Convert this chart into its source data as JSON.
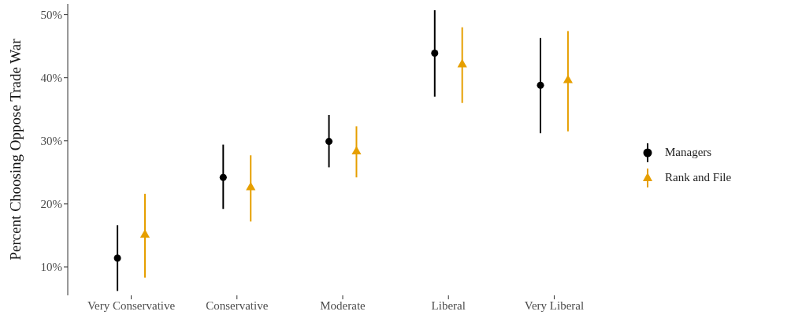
{
  "chart_data": {
    "type": "scatter",
    "ylabel": "Percent Choosing Oppose Trade War",
    "categories": [
      "Very Conservative",
      "Conservative",
      "Moderate",
      "Liberal",
      "Very Liberal"
    ],
    "series": [
      {
        "name": "Managers",
        "color": "#000000",
        "marker": "circle",
        "values": [
          11.4,
          24.2,
          29.9,
          43.9,
          38.8
        ],
        "errors": [
          [
            6.2,
            16.6
          ],
          [
            19.2,
            29.4
          ],
          [
            25.8,
            34.1
          ],
          [
            37.0,
            50.7
          ],
          [
            31.2,
            46.3
          ]
        ]
      },
      {
        "name": "Rank and File",
        "color": "#e69f00",
        "marker": "triangle",
        "values": [
          15.1,
          22.6,
          28.3,
          42.1,
          39.6
        ],
        "errors": [
          [
            8.3,
            21.6
          ],
          [
            17.2,
            27.7
          ],
          [
            24.2,
            32.3
          ],
          [
            36.0,
            48.0
          ],
          [
            31.5,
            47.4
          ]
        ]
      }
    ],
    "ylim": [
      5.5,
      51.7
    ],
    "yticks": [
      {
        "value": 10,
        "label": "10%"
      },
      {
        "value": 20,
        "label": "20%"
      },
      {
        "value": 30,
        "label": "30%"
      },
      {
        "value": 40,
        "label": "40%"
      },
      {
        "value": 50,
        "label": "50%"
      }
    ],
    "grid": false,
    "legend": "right"
  }
}
